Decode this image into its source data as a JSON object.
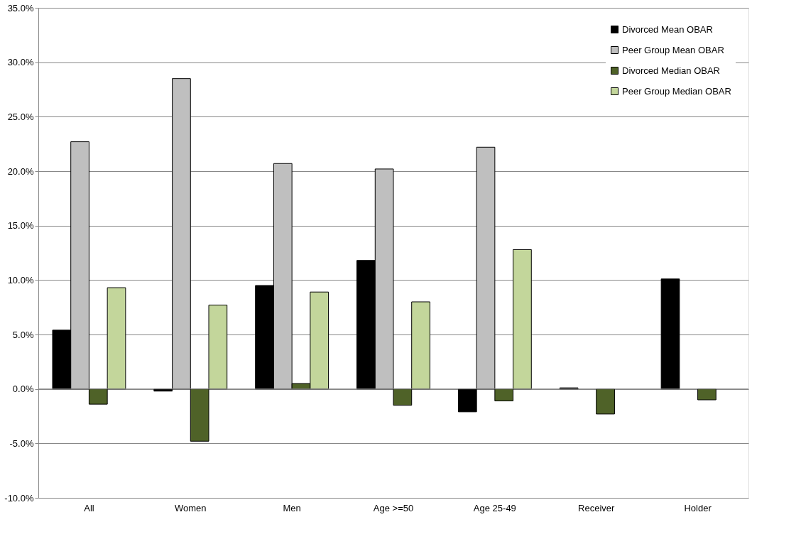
{
  "chart_data": {
    "type": "bar",
    "categories": [
      "All",
      "Women",
      "Men",
      "Age >=50",
      "Age 25-49",
      "Receiver",
      "Holder"
    ],
    "series": [
      {
        "name": "Divorced Mean OBAR",
        "color": "#000000",
        "values": [
          5.4,
          -0.2,
          9.5,
          11.8,
          -2.1,
          0.1,
          10.1
        ]
      },
      {
        "name": "Peer Group Mean OBAR",
        "color": "#bfbfbf",
        "values": [
          22.7,
          28.5,
          20.7,
          20.2,
          22.2,
          null,
          null
        ]
      },
      {
        "name": "Divorced Median OBAR",
        "color": "#4f6228",
        "values": [
          -1.4,
          -4.8,
          0.5,
          -1.5,
          -1.1,
          -2.3,
          -1.0
        ]
      },
      {
        "name": "Peer Group Median OBAR",
        "color": "#c3d69b",
        "values": [
          9.3,
          7.7,
          8.9,
          8.0,
          12.8,
          null,
          null
        ]
      }
    ],
    "ylim": [
      -10,
      35
    ],
    "yticks": [
      {
        "value": -10,
        "label": "-10.0%"
      },
      {
        "value": -5,
        "label": "-5.0%"
      },
      {
        "value": 0,
        "label": "0.0%"
      },
      {
        "value": 5,
        "label": "5.0%"
      },
      {
        "value": 10,
        "label": "10.0%"
      },
      {
        "value": 15,
        "label": "15.0%"
      },
      {
        "value": 20,
        "label": "20.0%"
      },
      {
        "value": 25,
        "label": "25.0%"
      },
      {
        "value": 30,
        "label": "30.0%"
      },
      {
        "value": 35,
        "label": "35.0%"
      }
    ],
    "grid": "y",
    "legend": "top right"
  }
}
